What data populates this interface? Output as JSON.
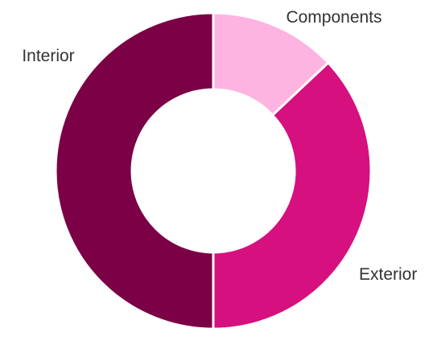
{
  "chart_data": {
    "type": "pie",
    "variant": "donut",
    "title": "",
    "slices": [
      {
        "label": "Components",
        "value": 13,
        "color": "#fdb4e0"
      },
      {
        "label": "Exterior",
        "value": 37,
        "color": "#d6107e"
      },
      {
        "label": "Interior",
        "value": 50,
        "color": "#7b0046"
      }
    ],
    "legend": "none",
    "labels_outside": true
  }
}
